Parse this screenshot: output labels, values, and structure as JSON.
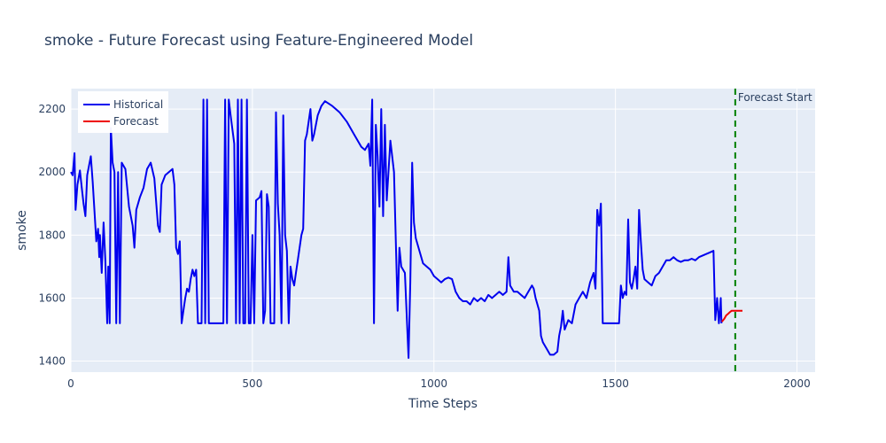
{
  "chart_data": {
    "type": "line",
    "title": "smoke - Future Forecast using Feature-Engineered Model",
    "xlabel": "Time Steps",
    "ylabel": "smoke",
    "xlim": [
      0,
      2050
    ],
    "ylim": [
      1365,
      2265
    ],
    "x_ticks": [
      0,
      500,
      1000,
      1500,
      2000
    ],
    "y_ticks": [
      1400,
      1600,
      1800,
      2000,
      2200
    ],
    "grid": true,
    "legend_position": "top-left",
    "annotation": {
      "text": "Forecast Start",
      "x": 1830
    },
    "colors": {
      "historical": "#0000ee",
      "forecast": "#ee0000",
      "marker": "#008000",
      "plot_bg": "#e5ecf6"
    },
    "series": [
      {
        "name": "Historical",
        "points": [
          [
            0,
            2000
          ],
          [
            5,
            1990
          ],
          [
            10,
            2060
          ],
          [
            13,
            1880
          ],
          [
            18,
            1960
          ],
          [
            25,
            2005
          ],
          [
            30,
            1950
          ],
          [
            35,
            1900
          ],
          [
            40,
            1860
          ],
          [
            45,
            1990
          ],
          [
            55,
            2050
          ],
          [
            60,
            1970
          ],
          [
            70,
            1780
          ],
          [
            75,
            1820
          ],
          [
            78,
            1730
          ],
          [
            80,
            1800
          ],
          [
            85,
            1680
          ],
          [
            90,
            1840
          ],
          [
            95,
            1720
          ],
          [
            100,
            1520
          ],
          [
            103,
            1700
          ],
          [
            107,
            1520
          ],
          [
            110,
            2140
          ],
          [
            115,
            2030
          ],
          [
            120,
            2000
          ],
          [
            125,
            1520
          ],
          [
            130,
            2000
          ],
          [
            135,
            1520
          ],
          [
            140,
            2030
          ],
          [
            150,
            2010
          ],
          [
            160,
            1890
          ],
          [
            170,
            1830
          ],
          [
            175,
            1760
          ],
          [
            180,
            1880
          ],
          [
            190,
            1920
          ],
          [
            200,
            1950
          ],
          [
            210,
            2010
          ],
          [
            220,
            2030
          ],
          [
            230,
            1980
          ],
          [
            240,
            1830
          ],
          [
            245,
            1810
          ],
          [
            250,
            1960
          ],
          [
            260,
            1990
          ],
          [
            270,
            2000
          ],
          [
            280,
            2010
          ],
          [
            285,
            1960
          ],
          [
            290,
            1760
          ],
          [
            295,
            1740
          ],
          [
            300,
            1780
          ],
          [
            305,
            1520
          ],
          [
            310,
            1560
          ],
          [
            315,
            1600
          ],
          [
            320,
            1630
          ],
          [
            325,
            1620
          ],
          [
            330,
            1660
          ],
          [
            335,
            1690
          ],
          [
            340,
            1670
          ],
          [
            345,
            1690
          ],
          [
            350,
            1520
          ],
          [
            360,
            1520
          ],
          [
            365,
            2230
          ],
          [
            370,
            1520
          ],
          [
            375,
            2230
          ],
          [
            380,
            1520
          ],
          [
            420,
            1520
          ],
          [
            425,
            2230
          ],
          [
            430,
            1520
          ],
          [
            435,
            2230
          ],
          [
            440,
            2180
          ],
          [
            450,
            2090
          ],
          [
            455,
            1520
          ],
          [
            460,
            2230
          ],
          [
            465,
            1520
          ],
          [
            470,
            2230
          ],
          [
            475,
            1520
          ],
          [
            480,
            1520
          ],
          [
            485,
            2230
          ],
          [
            490,
            1520
          ],
          [
            495,
            1520
          ],
          [
            500,
            1800
          ],
          [
            505,
            1520
          ],
          [
            510,
            1910
          ],
          [
            520,
            1920
          ],
          [
            525,
            1940
          ],
          [
            530,
            1520
          ],
          [
            535,
            1560
          ],
          [
            540,
            1930
          ],
          [
            545,
            1890
          ],
          [
            550,
            1520
          ],
          [
            560,
            1520
          ],
          [
            565,
            2190
          ],
          [
            570,
            1900
          ],
          [
            575,
            1800
          ],
          [
            580,
            1520
          ],
          [
            585,
            2180
          ],
          [
            590,
            1800
          ],
          [
            595,
            1750
          ],
          [
            600,
            1520
          ],
          [
            605,
            1700
          ],
          [
            610,
            1660
          ],
          [
            615,
            1640
          ],
          [
            620,
            1680
          ],
          [
            625,
            1720
          ],
          [
            635,
            1800
          ],
          [
            640,
            1820
          ],
          [
            645,
            2100
          ],
          [
            650,
            2120
          ],
          [
            660,
            2200
          ],
          [
            665,
            2100
          ],
          [
            670,
            2120
          ],
          [
            680,
            2180
          ],
          [
            690,
            2210
          ],
          [
            700,
            2225
          ],
          [
            720,
            2210
          ],
          [
            740,
            2190
          ],
          [
            760,
            2160
          ],
          [
            780,
            2120
          ],
          [
            800,
            2080
          ],
          [
            810,
            2070
          ],
          [
            820,
            2090
          ],
          [
            825,
            2020
          ],
          [
            830,
            2230
          ],
          [
            835,
            1520
          ],
          [
            840,
            2150
          ],
          [
            845,
            2050
          ],
          [
            850,
            1890
          ],
          [
            855,
            2200
          ],
          [
            860,
            1860
          ],
          [
            865,
            2150
          ],
          [
            870,
            1910
          ],
          [
            880,
            2100
          ],
          [
            890,
            2000
          ],
          [
            900,
            1560
          ],
          [
            905,
            1760
          ],
          [
            910,
            1700
          ],
          [
            920,
            1680
          ],
          [
            930,
            1410
          ],
          [
            935,
            1650
          ],
          [
            940,
            2030
          ],
          [
            945,
            1840
          ],
          [
            950,
            1790
          ],
          [
            960,
            1750
          ],
          [
            970,
            1710
          ],
          [
            980,
            1700
          ],
          [
            990,
            1690
          ],
          [
            1000,
            1670
          ],
          [
            1010,
            1660
          ],
          [
            1020,
            1650
          ],
          [
            1030,
            1660
          ],
          [
            1040,
            1665
          ],
          [
            1050,
            1660
          ],
          [
            1060,
            1620
          ],
          [
            1070,
            1600
          ],
          [
            1080,
            1590
          ],
          [
            1090,
            1590
          ],
          [
            1100,
            1580
          ],
          [
            1110,
            1600
          ],
          [
            1120,
            1590
          ],
          [
            1130,
            1600
          ],
          [
            1140,
            1590
          ],
          [
            1150,
            1610
          ],
          [
            1160,
            1600
          ],
          [
            1170,
            1610
          ],
          [
            1180,
            1620
          ],
          [
            1190,
            1610
          ],
          [
            1200,
            1620
          ],
          [
            1205,
            1730
          ],
          [
            1210,
            1640
          ],
          [
            1220,
            1620
          ],
          [
            1230,
            1620
          ],
          [
            1240,
            1610
          ],
          [
            1250,
            1600
          ],
          [
            1260,
            1620
          ],
          [
            1270,
            1640
          ],
          [
            1275,
            1630
          ],
          [
            1280,
            1600
          ],
          [
            1290,
            1560
          ],
          [
            1295,
            1480
          ],
          [
            1300,
            1460
          ],
          [
            1310,
            1440
          ],
          [
            1320,
            1420
          ],
          [
            1330,
            1420
          ],
          [
            1340,
            1430
          ],
          [
            1345,
            1480
          ],
          [
            1350,
            1510
          ],
          [
            1355,
            1560
          ],
          [
            1360,
            1500
          ],
          [
            1370,
            1530
          ],
          [
            1380,
            1520
          ],
          [
            1390,
            1580
          ],
          [
            1400,
            1600
          ],
          [
            1410,
            1620
          ],
          [
            1420,
            1600
          ],
          [
            1430,
            1650
          ],
          [
            1440,
            1680
          ],
          [
            1445,
            1630
          ],
          [
            1450,
            1880
          ],
          [
            1455,
            1830
          ],
          [
            1460,
            1900
          ],
          [
            1465,
            1520
          ],
          [
            1510,
            1520
          ],
          [
            1515,
            1640
          ],
          [
            1520,
            1600
          ],
          [
            1525,
            1620
          ],
          [
            1530,
            1610
          ],
          [
            1535,
            1850
          ],
          [
            1540,
            1650
          ],
          [
            1545,
            1630
          ],
          [
            1550,
            1660
          ],
          [
            1555,
            1700
          ],
          [
            1560,
            1630
          ],
          [
            1565,
            1880
          ],
          [
            1570,
            1780
          ],
          [
            1575,
            1690
          ],
          [
            1580,
            1660
          ],
          [
            1590,
            1650
          ],
          [
            1600,
            1640
          ],
          [
            1610,
            1670
          ],
          [
            1620,
            1680
          ],
          [
            1630,
            1700
          ],
          [
            1640,
            1720
          ],
          [
            1650,
            1720
          ],
          [
            1660,
            1730
          ],
          [
            1670,
            1720
          ],
          [
            1680,
            1715
          ],
          [
            1690,
            1720
          ],
          [
            1700,
            1720
          ],
          [
            1710,
            1725
          ],
          [
            1720,
            1720
          ],
          [
            1730,
            1730
          ],
          [
            1740,
            1735
          ],
          [
            1750,
            1740
          ],
          [
            1760,
            1745
          ],
          [
            1770,
            1750
          ],
          [
            1775,
            1530
          ],
          [
            1780,
            1600
          ],
          [
            1785,
            1520
          ],
          [
            1788,
            1560
          ],
          [
            1790,
            1600
          ],
          [
            1792,
            1520
          ]
        ]
      },
      {
        "name": "Forecast",
        "points": [
          [
            1793,
            1525
          ],
          [
            1800,
            1535
          ],
          [
            1805,
            1545
          ],
          [
            1810,
            1550
          ],
          [
            1815,
            1555
          ],
          [
            1820,
            1560
          ],
          [
            1825,
            1560
          ],
          [
            1830,
            1560
          ],
          [
            1840,
            1560
          ],
          [
            1850,
            1560
          ]
        ]
      }
    ]
  }
}
